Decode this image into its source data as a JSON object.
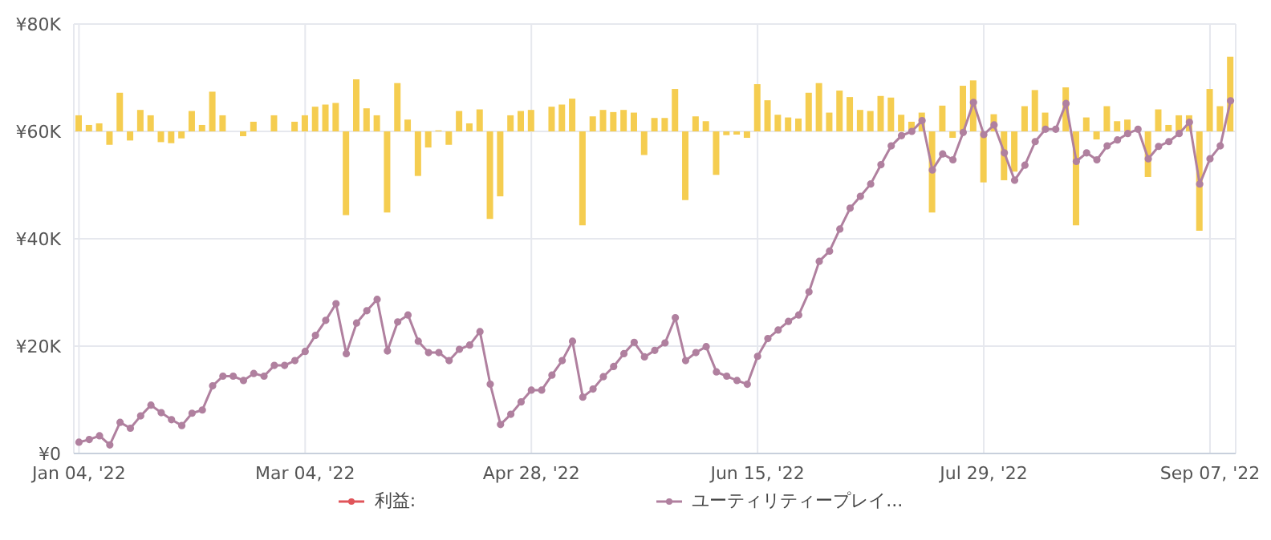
{
  "chart_data": {
    "type": "line",
    "categories": [
      "Jan 04, '22",
      null,
      null,
      null,
      null,
      null,
      null,
      null,
      null,
      null,
      null,
      null,
      null,
      null,
      null,
      null,
      null,
      null,
      null,
      null,
      null,
      null,
      "Mar 04, '22",
      null,
      null,
      null,
      null,
      null,
      null,
      null,
      null,
      null,
      null,
      null,
      null,
      null,
      null,
      null,
      null,
      null,
      null,
      null,
      null,
      null,
      "Apr 28, '22",
      null,
      null,
      null,
      null,
      null,
      null,
      null,
      null,
      null,
      null,
      null,
      null,
      null,
      null,
      null,
      null,
      null,
      null,
      null,
      null,
      null,
      "Jun 15, '22",
      null,
      null,
      null,
      null,
      null,
      null,
      null,
      null,
      null,
      null,
      null,
      null,
      null,
      null,
      null,
      null,
      null,
      null,
      null,
      null,
      null,
      "Jul 29, '22",
      null,
      null,
      null,
      null,
      null,
      null,
      null,
      null,
      null,
      null,
      null,
      null,
      null,
      null,
      null,
      null,
      null,
      null,
      null,
      null,
      null,
      "Sep 07, '22",
      null,
      null
    ],
    "series": [
      {
        "name": "利益:",
        "color": "#e0555a",
        "values": [
          null,
          null,
          null,
          null,
          null,
          null,
          null,
          null,
          null,
          null,
          null,
          null,
          null,
          null,
          null,
          null,
          null,
          null,
          null,
          null,
          null,
          null,
          null,
          null,
          null,
          null,
          null,
          null,
          null,
          null,
          null,
          null,
          null,
          null,
          null,
          null,
          null,
          null,
          null,
          null,
          null,
          null,
          null,
          null,
          null,
          null,
          null,
          null,
          null,
          null,
          null,
          null,
          null,
          null,
          null,
          null,
          null,
          null,
          null,
          null,
          null,
          null,
          null,
          null,
          null,
          null,
          null,
          null,
          null,
          null,
          null,
          null,
          null,
          null,
          null,
          null,
          null,
          null,
          null,
          null,
          null,
          null,
          null,
          null,
          null,
          null,
          null,
          null,
          null,
          null,
          null,
          null,
          null,
          null,
          null,
          null,
          null,
          null,
          null,
          null,
          null,
          null,
          null,
          null,
          null,
          null,
          null,
          null,
          null,
          null,
          null,
          null,
          null
        ]
      },
      {
        "type": "bar",
        "color": "#f5cd50",
        "base": [
          60000,
          60000,
          60000,
          60000,
          60000,
          60000,
          60000,
          60000,
          60000,
          60000,
          60000,
          60000,
          60000,
          60000,
          60000,
          null,
          60000,
          60000,
          null,
          60000,
          null,
          60000,
          60000,
          60000,
          60000,
          60000,
          60000,
          60000,
          60000,
          60000,
          60000,
          60000,
          60000,
          60000,
          60000,
          60000,
          60000,
          60000,
          60000,
          60000,
          60000,
          60000,
          60000,
          60000,
          60000,
          null,
          60000,
          60000,
          60000,
          60000,
          60000,
          60000,
          60000,
          60000,
          60000,
          60000,
          60000,
          60000,
          60000,
          60000,
          60000,
          60000,
          60000,
          60000,
          60000,
          60000,
          60000,
          60000,
          60000,
          60000,
          60000,
          60000,
          60000,
          60000,
          60000,
          60000,
          60000,
          60000,
          60000,
          60000,
          60000,
          60000,
          60000,
          60000,
          60000,
          60000,
          60000,
          60000,
          60000,
          60000,
          60000,
          60000,
          60000,
          60000,
          60000,
          null,
          60000,
          60000,
          60000,
          60000,
          60000,
          60000,
          60000,
          null,
          60000,
          60000,
          60000,
          60000,
          60000,
          60000,
          60000,
          60000,
          60000
        ],
        "values": [
          3000,
          1200,
          1500,
          -2500,
          7200,
          -1700,
          4000,
          3000,
          -2000,
          -2200,
          -1300,
          3800,
          1200,
          7400,
          3000,
          null,
          -900,
          1800,
          null,
          3000,
          null,
          1800,
          3000,
          4600,
          5000,
          5300,
          -15600,
          9700,
          4300,
          3000,
          -15100,
          9000,
          2200,
          -8300,
          -3000,
          200,
          -2500,
          3800,
          1500,
          4100,
          -16300,
          -12100,
          3000,
          3800,
          4000,
          null,
          4600,
          5000,
          6100,
          -17500,
          2800,
          4000,
          3600,
          4000,
          3500,
          -4400,
          2500,
          2500,
          7900,
          -12800,
          2800,
          1900,
          -8100,
          -700,
          -600,
          -1200,
          8800,
          5800,
          3100,
          2600,
          2400,
          7200,
          9000,
          3500,
          7600,
          6400,
          4000,
          3800,
          6600,
          6300,
          3100,
          1800,
          3500,
          -15100,
          4800,
          -1200,
          8500,
          9500,
          -9500,
          3200,
          -9100,
          -7500,
          4700,
          7700,
          3500,
          null,
          8200,
          -17500,
          2600,
          -1500,
          4700,
          1900,
          2200,
          null,
          -8500,
          4100,
          1200,
          3000,
          3000,
          -18500,
          7900,
          4700,
          13900
        ]
      },
      {
        "name": "ユーティリティープレイ...",
        "color": "#b0809f",
        "values": [
          2100,
          2600,
          3300,
          1600,
          5800,
          4700,
          7000,
          9000,
          7600,
          6300,
          5200,
          7500,
          8100,
          12600,
          14400,
          14400,
          13600,
          14900,
          14400,
          16400,
          16400,
          17300,
          19000,
          22000,
          24800,
          27900,
          18600,
          24300,
          26600,
          28700,
          19100,
          24500,
          25800,
          20900,
          18800,
          18800,
          17300,
          19400,
          20200,
          22700,
          12900,
          5400,
          7300,
          9600,
          11800,
          11800,
          14600,
          17300,
          20900,
          10500,
          12000,
          14300,
          16200,
          18600,
          20700,
          18000,
          19200,
          20600,
          25300,
          17300,
          18800,
          19900,
          15200,
          14400,
          13600,
          12900,
          18100,
          21400,
          23000,
          24600,
          25800,
          30100,
          35800,
          37700,
          41800,
          45700,
          47900,
          50200,
          53800,
          57300,
          59200,
          60000,
          62000,
          52800,
          55800,
          54700,
          59800,
          65400,
          59400,
          61200,
          56000,
          50900,
          53700,
          58100,
          60400,
          60400,
          65200,
          54400,
          56000,
          54700,
          57300,
          58400,
          59600,
          60400,
          54900,
          57200,
          58100,
          59600,
          61700,
          50200,
          54900,
          57300,
          65700
        ]
      }
    ],
    "ylim": [
      0,
      80000
    ],
    "yticks": [
      {
        "value": 0,
        "label": "¥0"
      },
      {
        "value": 20000,
        "label": "¥20K"
      },
      {
        "value": 40000,
        "label": "¥40K"
      },
      {
        "value": 60000,
        "label": "¥60K"
      },
      {
        "value": 80000,
        "label": "¥80K"
      }
    ],
    "grid": true,
    "legend": "bottom",
    "marker": "circle"
  }
}
